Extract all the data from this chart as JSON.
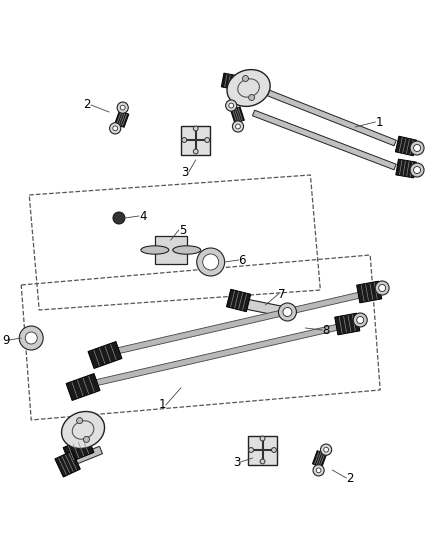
{
  "bg_color": "#ffffff",
  "fig_width": 4.38,
  "fig_height": 5.33,
  "dpi": 100,
  "line_color": "#222222",
  "dashed_color": "#555555",
  "shaft_light": "#d8d8d8",
  "shaft_dark": "#1a1a1a",
  "shaft_mid": "#888888",
  "joint_fill": "#e8e8e8",
  "label_fontsize": 8.5
}
